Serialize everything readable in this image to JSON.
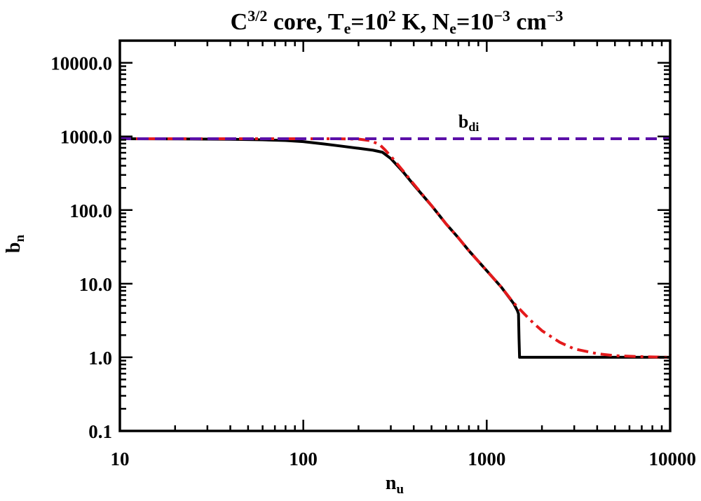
{
  "chart_data": {
    "type": "line",
    "title": {
      "parts": [
        {
          "text": "C",
          "script": "normal"
        },
        {
          "text": "3/2",
          "script": "sup"
        },
        {
          "text": " core, T",
          "script": "normal"
        },
        {
          "text": "e",
          "script": "sub"
        },
        {
          "text": "=10",
          "script": "normal"
        },
        {
          "text": "2",
          "script": "sup"
        },
        {
          "text": " K, N",
          "script": "normal"
        },
        {
          "text": "e",
          "script": "sub"
        },
        {
          "text": "=10",
          "script": "normal"
        },
        {
          "text": "−3",
          "script": "sup"
        },
        {
          "text": " cm",
          "script": "normal"
        },
        {
          "text": "−3",
          "script": "sup"
        }
      ]
    },
    "xlabel": {
      "main": "n",
      "sub": "u"
    },
    "ylabel": {
      "main": "b",
      "sub": "n"
    },
    "xscale": "log",
    "yscale": "log",
    "xlim": [
      10,
      10000
    ],
    "ylim": [
      0.1,
      20000
    ],
    "xticks": [
      {
        "value": 10,
        "label": "10"
      },
      {
        "value": 100,
        "label": "100"
      },
      {
        "value": 1000,
        "label": "1000"
      },
      {
        "value": 10000,
        "label": "10000"
      }
    ],
    "yticks": [
      {
        "value": 0.1,
        "label": "0.1"
      },
      {
        "value": 1,
        "label": "1.0"
      },
      {
        "value": 10,
        "label": "10.0"
      },
      {
        "value": 100,
        "label": "100.0"
      },
      {
        "value": 1000,
        "label": "1000.0"
      },
      {
        "value": 10000,
        "label": "10000.0"
      }
    ],
    "annotations": [
      {
        "main": "b",
        "sub": "di",
        "x": 850,
        "y": 1500
      }
    ],
    "series": [
      {
        "color": "#000000",
        "style": "solid",
        "x": [
          10,
          20,
          40,
          60,
          80,
          100,
          130,
          160,
          200,
          240,
          270,
          300,
          350,
          400,
          500,
          600,
          700,
          800,
          1000,
          1200,
          1400,
          1470,
          1490,
          1500,
          1510,
          2000,
          5000,
          10000
        ],
        "y": [
          930,
          925,
          915,
          900,
          880,
          850,
          790,
          740,
          690,
          650,
          610,
          500,
          330,
          220,
          115,
          65,
          42,
          28,
          15,
          9,
          5.4,
          4.3,
          3.9,
          1.8,
          1,
          1,
          1,
          1
        ]
      },
      {
        "color": "#e41a1c",
        "style": "dashdot",
        "x": [
          10,
          50,
          100,
          150,
          200,
          230,
          260,
          280,
          300,
          350,
          400,
          500,
          600,
          700,
          800,
          1000,
          1200,
          1400,
          1600,
          1800,
          2000,
          2500,
          3000,
          4000,
          5000,
          7000,
          10000
        ],
        "y": [
          930,
          930,
          930,
          930,
          920,
          880,
          780,
          650,
          540,
          340,
          225,
          115,
          65,
          42,
          28,
          15,
          9,
          5.5,
          3.9,
          2.9,
          2.3,
          1.6,
          1.3,
          1.12,
          1.05,
          1.02,
          1
        ]
      },
      {
        "color": "#5b0fa8",
        "style": "dashed",
        "x": [
          10,
          10000
        ],
        "y": [
          930,
          930
        ]
      }
    ]
  }
}
